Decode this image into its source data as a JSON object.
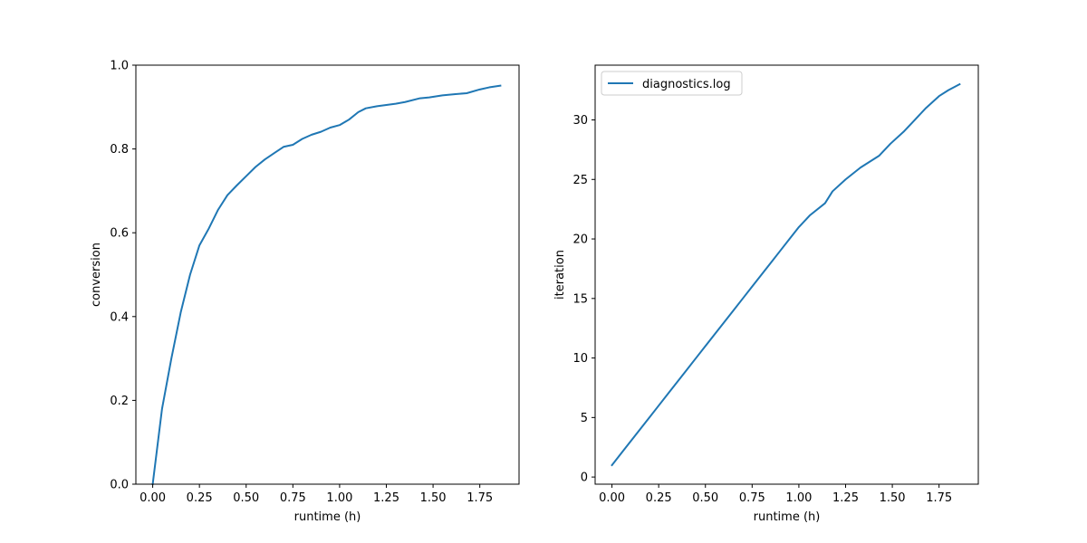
{
  "chart_data": [
    {
      "type": "line",
      "xlabel": "runtime (h)",
      "ylabel": "conversion",
      "xlim": [
        -0.09,
        1.96
      ],
      "ylim": [
        0.0,
        1.0
      ],
      "xticks": [
        0.0,
        0.25,
        0.5,
        0.75,
        1.0,
        1.25,
        1.5,
        1.75
      ],
      "xtick_labels": [
        "0.00",
        "0.25",
        "0.50",
        "0.75",
        "1.00",
        "1.25",
        "1.50",
        "1.75"
      ],
      "yticks": [
        0.0,
        0.2,
        0.4,
        0.6,
        0.8,
        1.0
      ],
      "ytick_labels": [
        "0.0",
        "0.2",
        "0.4",
        "0.6",
        "0.8",
        "1.0"
      ],
      "grid": false,
      "legend": null,
      "series": [
        {
          "color": "#1f77b4",
          "x": [
            0.0,
            0.05,
            0.1,
            0.15,
            0.2,
            0.25,
            0.3,
            0.35,
            0.4,
            0.45,
            0.5,
            0.55,
            0.6,
            0.65,
            0.7,
            0.75,
            0.8,
            0.85,
            0.9,
            0.95,
            1.0,
            1.05,
            1.1,
            1.14,
            1.2,
            1.3,
            1.35,
            1.43,
            1.48,
            1.55,
            1.62,
            1.68,
            1.75,
            1.8,
            1.86
          ],
          "y": [
            0.0,
            0.18,
            0.3,
            0.41,
            0.5,
            0.57,
            0.61,
            0.655,
            0.69,
            0.713,
            0.735,
            0.757,
            0.775,
            0.79,
            0.805,
            0.81,
            0.824,
            0.834,
            0.841,
            0.851,
            0.857,
            0.87,
            0.888,
            0.897,
            0.902,
            0.908,
            0.912,
            0.921,
            0.923,
            0.928,
            0.931,
            0.933,
            0.942,
            0.947,
            0.951
          ]
        }
      ]
    },
    {
      "type": "line",
      "xlabel": "runtime (h)",
      "ylabel": "iteration",
      "xlim": [
        -0.09,
        1.96
      ],
      "ylim": [
        -0.6,
        34.6
      ],
      "xticks": [
        0.0,
        0.25,
        0.5,
        0.75,
        1.0,
        1.25,
        1.5,
        1.75
      ],
      "xtick_labels": [
        "0.00",
        "0.25",
        "0.50",
        "0.75",
        "1.00",
        "1.25",
        "1.50",
        "1.75"
      ],
      "yticks": [
        0,
        5,
        10,
        15,
        20,
        25,
        30
      ],
      "ytick_labels": [
        "0",
        "5",
        "10",
        "15",
        "20",
        "25",
        "30"
      ],
      "grid": false,
      "legend": "top-left",
      "series": [
        {
          "name": "diagnostics.log",
          "color": "#1f77b4",
          "x": [
            0.0,
            0.05,
            0.1,
            0.15,
            0.2,
            0.25,
            0.3,
            0.35,
            0.4,
            0.45,
            0.5,
            0.55,
            0.6,
            0.65,
            0.7,
            0.75,
            0.8,
            0.85,
            0.9,
            0.95,
            1.0,
            1.06,
            1.14,
            1.18,
            1.25,
            1.33,
            1.43,
            1.49,
            1.56,
            1.62,
            1.68,
            1.75,
            1.8,
            1.86
          ],
          "y": [
            1,
            2,
            3,
            4,
            5,
            6,
            7,
            8,
            9,
            10,
            11,
            12,
            13,
            14,
            15,
            16,
            17,
            18,
            19,
            20,
            21,
            22,
            23,
            24,
            25,
            26,
            27,
            28,
            29,
            30,
            31,
            32,
            32.5,
            33
          ]
        }
      ]
    }
  ]
}
